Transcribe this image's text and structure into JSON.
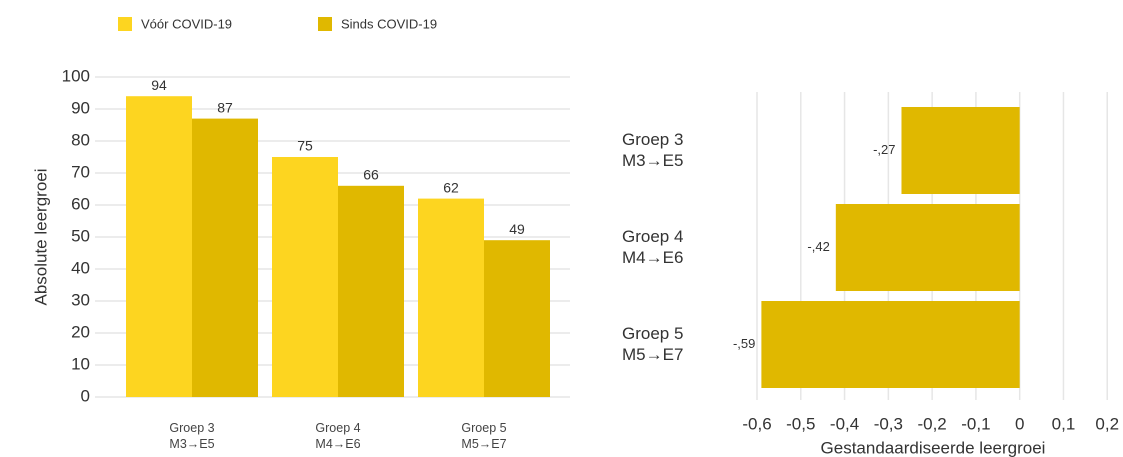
{
  "chart_data": [
    {
      "type": "bar",
      "categories": [
        "Groep 3\nM3→E5",
        "Groep 4\nM4→E6",
        "Groep 5\nM5→E7"
      ],
      "series": [
        {
          "name": "Vóór COVID-19",
          "color": "#fdd520",
          "values": [
            94,
            75,
            62
          ]
        },
        {
          "name": "Sinds COVID-19",
          "color": "#e0b800",
          "values": [
            87,
            66,
            49
          ]
        }
      ],
      "y_label": "Absolute leergroei",
      "ylim": [
        0,
        100
      ],
      "yticks": [
        0,
        10,
        20,
        30,
        40,
        50,
        60,
        70,
        80,
        90,
        100
      ],
      "grid": true,
      "legend": "top-left"
    },
    {
      "type": "barh",
      "categories": [
        "Groep 3\nM3→E5",
        "Groep 4\nM4→E6",
        "Groep 5\nM5→E7"
      ],
      "values": [
        -0.27,
        -0.42,
        -0.59
      ],
      "value_labels": [
        "-,27",
        "-,42",
        "-,59"
      ],
      "color": "#e0b800",
      "x_label": "Gestandaardiseerde leergroei",
      "xlim": [
        -0.64,
        0.22
      ],
      "xticks": [
        {
          "value": -0.6,
          "label": "-0,6"
        },
        {
          "value": -0.5,
          "label": "-0,5"
        },
        {
          "value": -0.4,
          "label": "-0,4"
        },
        {
          "value": -0.3,
          "label": "-0,3"
        },
        {
          "value": -0.2,
          "label": "-0,2"
        },
        {
          "value": -0.1,
          "label": "-0,1"
        },
        0,
        {
          "value": 0.1,
          "label": "0,1"
        },
        {
          "value": 0.2,
          "label": "0,2"
        }
      ],
      "grid": true
    }
  ]
}
